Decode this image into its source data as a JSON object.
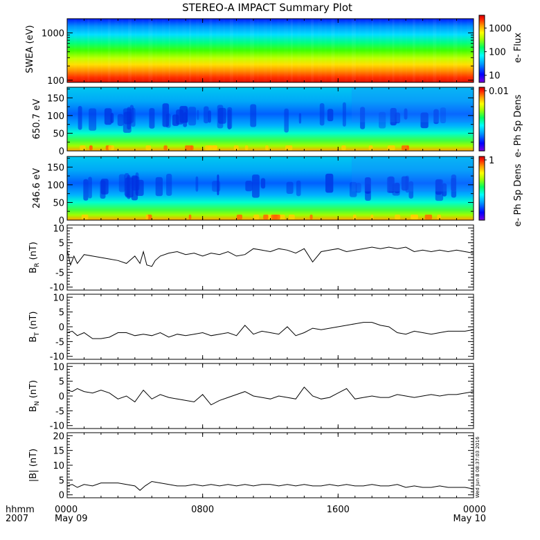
{
  "title": "STEREO-A IMPACT Summary Plot",
  "stamp": "Wed Jun 8 08:37:03 2016",
  "time_axis": {
    "unit_label": "hhmm",
    "year_label": "2007",
    "ticks": [
      {
        "hours": 0,
        "label": "0000",
        "date": "May 09"
      },
      {
        "hours": 8,
        "label": "0800",
        "date": ""
      },
      {
        "hours": 16,
        "label": "1600",
        "date": ""
      },
      {
        "hours": 24,
        "label": "0000",
        "date": "May 10"
      }
    ],
    "range_hours": [
      0,
      24
    ]
  },
  "colors": {
    "spectrogram_scale": [
      "#7a00e0",
      "#0000ff",
      "#00a0ff",
      "#00ffff",
      "#00ff60",
      "#a0ff00",
      "#ffff00",
      "#ffa000",
      "#ff2000",
      "#d00000"
    ],
    "line": "#000000"
  },
  "chart_data": [
    {
      "type": "heatmap",
      "ylabel": "SWEA (eV)",
      "yscale": "log",
      "ylim": [
        90,
        2000
      ],
      "yticks": [
        "100",
        "1000"
      ],
      "colorbar": {
        "label": "e- Flux",
        "scale": "log",
        "ticks": [
          "10",
          "100",
          "1000"
        ]
      },
      "description_levels": {
        "low_energy_level": 0.9,
        "mid_energy_level": 0.55,
        "high_energy_level": 0.1
      }
    },
    {
      "type": "heatmap",
      "ylabel": "650.7 eV",
      "ylim": [
        0,
        180
      ],
      "yticks": [
        "0",
        "50",
        "100",
        "150"
      ],
      "colorbar": {
        "label": "e- Ph Sp Dens",
        "ticks": [
          "0.01"
        ]
      }
    },
    {
      "type": "heatmap",
      "ylabel": "246.6 eV",
      "ylim": [
        0,
        180
      ],
      "yticks": [
        "0",
        "50",
        "100",
        "150"
      ],
      "colorbar": {
        "label": "e- Ph Sp Dens",
        "ticks": [
          "1"
        ]
      }
    },
    {
      "type": "line",
      "ylabel": "B",
      "ylabel_sub": "R",
      "ylabel_unit": "(nT)",
      "ylim": [
        -11,
        11
      ],
      "yticks": [
        "-10",
        "-5",
        "0",
        "5",
        "10"
      ],
      "x": [
        0,
        0.2,
        0.4,
        0.6,
        1,
        1.5,
        2,
        2.5,
        3,
        3.5,
        4,
        4.3,
        4.5,
        4.7,
        5,
        5.2,
        5.5,
        6,
        6.5,
        7,
        7.5,
        8,
        8.5,
        9,
        9.5,
        10,
        10.5,
        11,
        11.5,
        12,
        12.5,
        13,
        13.5,
        14,
        14.5,
        15,
        15.5,
        16,
        16.5,
        17,
        17.5,
        18,
        18.5,
        19,
        19.5,
        20,
        20.5,
        21,
        21.5,
        22,
        22.5,
        23,
        23.5,
        24
      ],
      "values": [
        2.5,
        -2.5,
        0.5,
        -2,
        1,
        0.5,
        0,
        -0.5,
        -1,
        -2,
        0.5,
        -2,
        2,
        -2.5,
        -3,
        -1,
        0.5,
        1.5,
        2,
        1,
        1.5,
        0.5,
        1.5,
        1,
        2,
        0.5,
        1,
        3,
        2.5,
        2,
        3,
        2.5,
        1.5,
        3,
        -1.5,
        2,
        2.5,
        3,
        2,
        2.5,
        3,
        3.5,
        3,
        3.5,
        3,
        3.5,
        2,
        2.5,
        2,
        2.5,
        2,
        2.5,
        2,
        1.5
      ]
    },
    {
      "type": "line",
      "ylabel": "B",
      "ylabel_sub": "T",
      "ylabel_unit": "(nT)",
      "ylim": [
        -11,
        11
      ],
      "yticks": [
        "-10",
        "-5",
        "0",
        "5",
        "10"
      ],
      "x": [
        0,
        0.3,
        0.6,
        1,
        1.5,
        2,
        2.5,
        3,
        3.5,
        4,
        4.5,
        5,
        5.5,
        6,
        6.5,
        7,
        7.5,
        8,
        8.5,
        9,
        9.5,
        10,
        10.5,
        11,
        11.5,
        12,
        12.5,
        13,
        13.5,
        14,
        14.5,
        15,
        15.5,
        16,
        16.5,
        17,
        17.5,
        18,
        18.5,
        19,
        19.5,
        20,
        20.5,
        21,
        21.5,
        22,
        22.5,
        23,
        23.5,
        24
      ],
      "values": [
        -2,
        -1.5,
        -3,
        -2,
        -4,
        -4,
        -3.5,
        -2,
        -2,
        -3,
        -2.5,
        -3,
        -2,
        -3.5,
        -2.5,
        -3,
        -2.5,
        -2,
        -3,
        -2.5,
        -2,
        -3,
        0.5,
        -2.5,
        -1.5,
        -2,
        -2.5,
        0,
        -3,
        -2,
        -0.5,
        -1,
        -0.5,
        0,
        0.5,
        1,
        1.5,
        1.5,
        0.5,
        0,
        -2,
        -2.5,
        -1.5,
        -2,
        -2.5,
        -2,
        -1.5,
        -1.5,
        -1.5,
        -1
      ]
    },
    {
      "type": "line",
      "ylabel": "B",
      "ylabel_sub": "N",
      "ylabel_unit": "(nT)",
      "ylim": [
        -11,
        11
      ],
      "yticks": [
        "-10",
        "-5",
        "0",
        "5",
        "10"
      ],
      "x": [
        0,
        0.3,
        0.6,
        1,
        1.5,
        2,
        2.5,
        3,
        3.5,
        4,
        4.5,
        5,
        5.5,
        6,
        6.5,
        7,
        7.5,
        8,
        8.5,
        9,
        9.5,
        10,
        10.5,
        11,
        11.5,
        12,
        12.5,
        13,
        13.5,
        14,
        14.5,
        15,
        15.5,
        16,
        16.5,
        17,
        17.5,
        18,
        18.5,
        19,
        19.5,
        20,
        20.5,
        21,
        21.5,
        22,
        22.5,
        23,
        23.5,
        24
      ],
      "values": [
        2,
        1.5,
        2.5,
        1.5,
        1,
        2,
        1,
        -1,
        0,
        -2,
        2,
        -1,
        0.5,
        -0.5,
        -1,
        -1.5,
        -2,
        0.5,
        -3,
        -1.5,
        -0.5,
        0.5,
        1.5,
        0,
        -0.5,
        -1,
        0,
        -0.5,
        -1,
        3,
        0,
        -1,
        -0.5,
        1,
        2.5,
        -1,
        -0.5,
        0,
        -0.5,
        -0.5,
        0.5,
        0,
        -0.5,
        0,
        0.5,
        0,
        0.5,
        0.5,
        1,
        1.5
      ]
    },
    {
      "type": "line",
      "ylabel": "|B|",
      "ylabel_unit": "(nT)",
      "ylim": [
        -1,
        21
      ],
      "yticks": [
        "0",
        "5",
        "10",
        "15",
        "20"
      ],
      "x": [
        0,
        0.3,
        0.6,
        1,
        1.5,
        2,
        2.5,
        3,
        3.5,
        4,
        4.3,
        4.6,
        5,
        5.5,
        6,
        6.5,
        7,
        7.5,
        8,
        8.5,
        9,
        9.5,
        10,
        10.5,
        11,
        11.5,
        12,
        12.5,
        13,
        13.5,
        14,
        14.5,
        15,
        15.5,
        16,
        16.5,
        17,
        17.5,
        18,
        18.5,
        19,
        19.5,
        20,
        20.5,
        21,
        21.5,
        22,
        22.5,
        23,
        23.5,
        24
      ],
      "values": [
        3,
        3.5,
        2.5,
        3.5,
        3,
        4,
        4,
        4,
        3.5,
        3,
        1.5,
        3,
        4.5,
        4,
        3.5,
        3,
        3,
        3.5,
        3,
        3.5,
        3,
        3.5,
        3,
        3.5,
        3,
        3.5,
        3.5,
        3,
        3.5,
        3,
        3.5,
        3,
        3,
        3.5,
        3,
        3.5,
        3,
        3,
        3.5,
        3,
        3,
        3.5,
        2.5,
        3,
        2.5,
        2.5,
        3,
        2.5,
        2.5,
        2.5,
        2
      ]
    }
  ]
}
